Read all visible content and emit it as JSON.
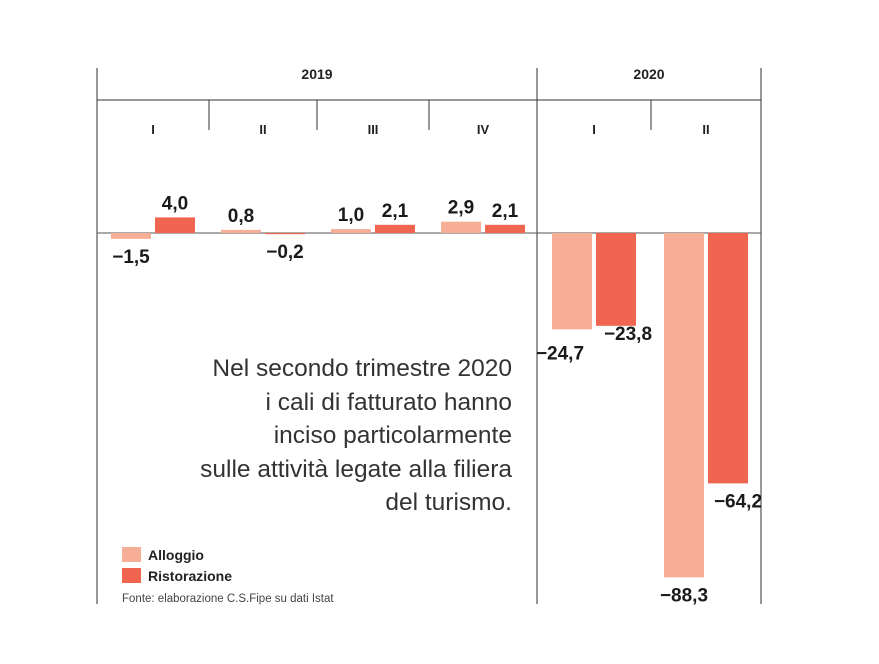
{
  "chart_data": {
    "type": "bar",
    "years": [
      {
        "label": "2019",
        "quarters": [
          "I",
          "II",
          "III",
          "IV"
        ]
      },
      {
        "label": "2020",
        "quarters": [
          "I",
          "II"
        ]
      }
    ],
    "categories": [
      "2019 I",
      "2019 II",
      "2019 III",
      "2019 IV",
      "2020 I",
      "2020 II"
    ],
    "series": [
      {
        "name": "Alloggio",
        "color": "#f7ae96",
        "values": [
          -1.5,
          0.8,
          1.0,
          2.9,
          -24.7,
          -88.3
        ],
        "labels": [
          "-1,5",
          "0,8",
          "1,0",
          "2,9",
          "-24,7",
          "-88,3"
        ]
      },
      {
        "name": "Ristorazione",
        "color": "#ef6550",
        "values": [
          4.0,
          -0.2,
          2.1,
          2.1,
          -23.8,
          -64.2
        ],
        "labels": [
          "4,0",
          "-0,2",
          "2,1",
          "2,1",
          "-23,8",
          "-64,2"
        ]
      }
    ],
    "grid": false,
    "legend_position": "bottom-left"
  },
  "annotation": {
    "lines": [
      "Nel secondo trimestre 2020",
      "i cali di fatturato hanno",
      "inciso particolarmente",
      "sulle attività legate alla filiera",
      "del turismo."
    ]
  },
  "legend": {
    "items": [
      {
        "label": "Alloggio",
        "color": "#f7ae96"
      },
      {
        "label": "Ristorazione",
        "color": "#ef6550"
      }
    ]
  },
  "source": "Fonte: elaborazione C.S.Fipe su dati Istat"
}
